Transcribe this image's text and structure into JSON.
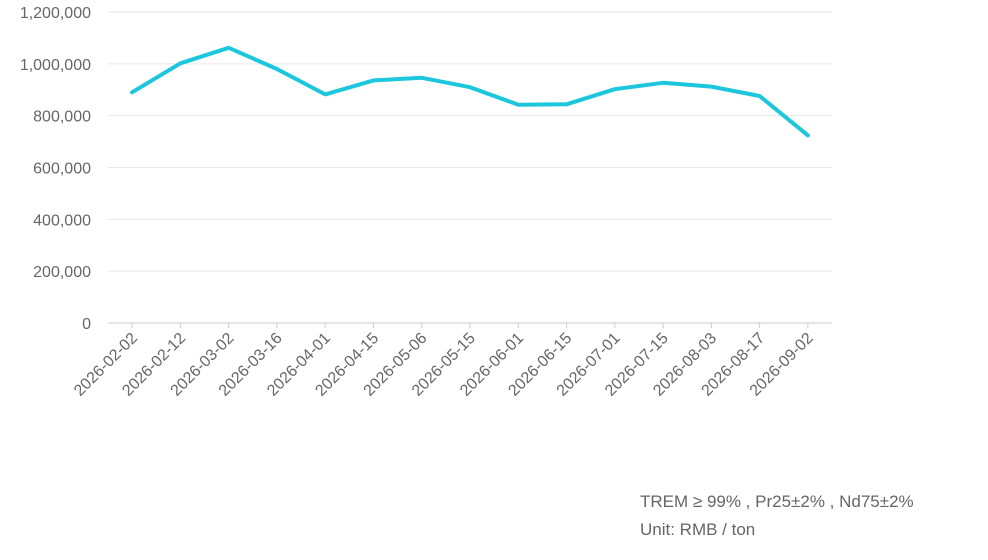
{
  "chart_data": {
    "type": "line",
    "title": "",
    "xlabel": "",
    "ylabel": "",
    "categories": [
      "2026-02-02",
      "2026-02-12",
      "2026-03-02",
      "2026-03-16",
      "2026-04-01",
      "2026-04-15",
      "2026-05-06",
      "2026-05-15",
      "2026-06-01",
      "2026-06-15",
      "2026-07-01",
      "2026-07-15",
      "2026-08-03",
      "2026-08-17",
      "2026-09-02"
    ],
    "series": [
      {
        "values": [
          890000,
          1002000,
          1062000,
          980000,
          882000,
          936000,
          946000,
          910000,
          842000,
          844000,
          902000,
          927000,
          912000,
          876000,
          724000
        ]
      }
    ],
    "ylim": [
      0,
      1200000
    ],
    "yticks": [
      0,
      200000,
      400000,
      600000,
      800000,
      1000000,
      1200000
    ],
    "ytick_labels": [
      "0",
      "200,000",
      "400,000",
      "600,000",
      "800,000",
      "1,000,000",
      "1,200,000"
    ],
    "grid": true,
    "legend": "none",
    "colors": {
      "series": "#1cc6dc",
      "grid": "#e6e6e6",
      "text": "#666666"
    }
  },
  "notes": {
    "spec": "TREM ≥ 99% , Pr25±2% , Nd75±2%",
    "unit": "Unit: RMB / ton"
  }
}
